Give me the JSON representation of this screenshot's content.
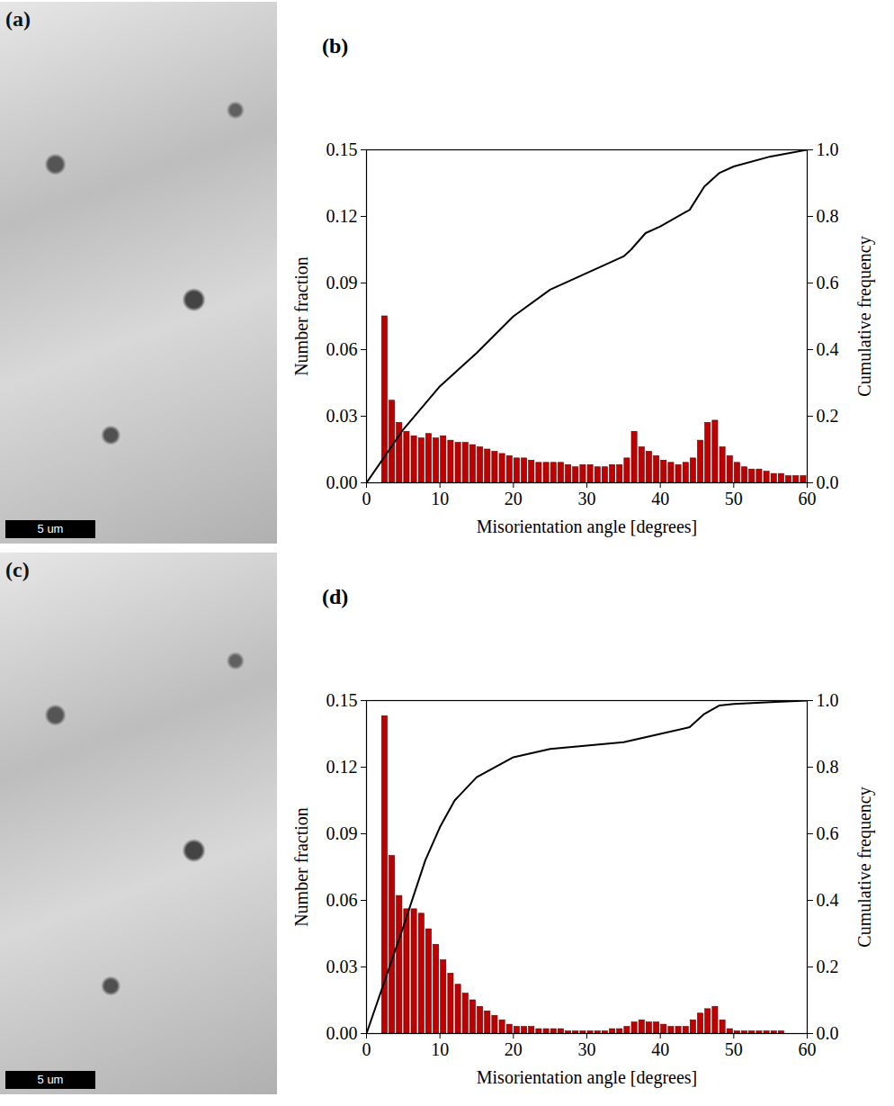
{
  "images": [
    {
      "label": "(a)",
      "scale_bar": "5 um"
    },
    {
      "label": "(c)",
      "scale_bar": "5 um"
    }
  ],
  "chart_data": [
    {
      "type": "histogram",
      "panel_label": "(b)",
      "x_label": "Misorientation angle [degrees]",
      "y_label": "Number fraction",
      "y2_label": "Cumulative frequency",
      "bins": [
        2,
        3,
        4,
        5,
        6,
        7,
        8,
        9,
        10,
        11,
        12,
        13,
        14,
        15,
        16,
        17,
        18,
        19,
        20,
        21,
        22,
        23,
        24,
        25,
        26,
        27,
        28,
        29,
        30,
        31,
        32,
        33,
        34,
        35,
        36,
        37,
        38,
        39,
        40,
        41,
        42,
        43,
        44,
        45,
        46,
        47,
        48,
        49,
        50,
        51,
        52,
        53,
        54,
        55,
        56,
        57,
        58,
        59,
        60
      ],
      "values": [
        0.075,
        0.037,
        0.027,
        0.023,
        0.021,
        0.02,
        0.022,
        0.02,
        0.021,
        0.019,
        0.018,
        0.018,
        0.017,
        0.016,
        0.015,
        0.014,
        0.013,
        0.012,
        0.011,
        0.011,
        0.01,
        0.009,
        0.009,
        0.009,
        0.009,
        0.008,
        0.007,
        0.008,
        0.008,
        0.007,
        0.007,
        0.008,
        0.008,
        0.011,
        0.023,
        0.016,
        0.014,
        0.012,
        0.01,
        0.009,
        0.008,
        0.009,
        0.011,
        0.019,
        0.027,
        0.028,
        0.016,
        0.012,
        0.009,
        0.007,
        0.006,
        0.006,
        0.005,
        0.004,
        0.004,
        0.003,
        0.003,
        0.003
      ],
      "color": "#c00000",
      "cumulative": {
        "type": "line",
        "axis": "y2",
        "color": "#000000",
        "x": [
          0,
          5,
          10,
          15,
          20,
          25,
          30,
          35,
          36,
          38,
          40,
          44,
          46,
          48,
          50,
          55,
          60
        ],
        "values": [
          0,
          0.16,
          0.29,
          0.39,
          0.5,
          0.58,
          0.63,
          0.68,
          0.7,
          0.75,
          0.77,
          0.82,
          0.89,
          0.93,
          0.95,
          0.98,
          1.0
        ]
      },
      "xlim": [
        0,
        60
      ],
      "xticks": [
        0,
        10,
        20,
        30,
        40,
        50,
        60
      ],
      "ylim": [
        0,
        0.15
      ],
      "yticks": [
        {
          "value": 0,
          "label": "0.00"
        },
        {
          "value": 0.03,
          "label": "0.03"
        },
        {
          "value": 0.06,
          "label": "0.06"
        },
        {
          "value": 0.09,
          "label": "0.09"
        },
        {
          "value": 0.12,
          "label": "0.12"
        },
        {
          "value": 0.15,
          "label": "0.15"
        }
      ],
      "y2lim": [
        0,
        1
      ],
      "y2ticks": [
        {
          "value": 0,
          "label": "0.0"
        },
        {
          "value": 0.2,
          "label": "0.2"
        },
        {
          "value": 0.4,
          "label": "0.4"
        },
        {
          "value": 0.6,
          "label": "0.6"
        },
        {
          "value": 0.8,
          "label": "0.8"
        },
        {
          "value": 1,
          "label": "1.0"
        }
      ]
    },
    {
      "type": "histogram",
      "panel_label": "(d)",
      "x_label": "Misorientation angle [degrees]",
      "y_label": "Number fraction",
      "y2_label": "Cumulative frequency",
      "bins": [
        2,
        3,
        4,
        5,
        6,
        7,
        8,
        9,
        10,
        11,
        12,
        13,
        14,
        15,
        16,
        17,
        18,
        19,
        20,
        21,
        22,
        23,
        24,
        25,
        26,
        27,
        28,
        29,
        30,
        31,
        32,
        33,
        34,
        35,
        36,
        37,
        38,
        39,
        40,
        41,
        42,
        43,
        44,
        45,
        46,
        47,
        48,
        49,
        50,
        51,
        52,
        53,
        54,
        55,
        56,
        57,
        58,
        59,
        60
      ],
      "values": [
        0.143,
        0.08,
        0.062,
        0.056,
        0.056,
        0.054,
        0.047,
        0.04,
        0.033,
        0.027,
        0.022,
        0.018,
        0.015,
        0.012,
        0.01,
        0.008,
        0.006,
        0.004,
        0.003,
        0.003,
        0.003,
        0.002,
        0.002,
        0.002,
        0.002,
        0.001,
        0.001,
        0.001,
        0.001,
        0.001,
        0.001,
        0.002,
        0.002,
        0.003,
        0.005,
        0.006,
        0.005,
        0.005,
        0.004,
        0.003,
        0.003,
        0.003,
        0.006,
        0.009,
        0.011,
        0.012,
        0.006,
        0.002,
        0.001,
        0.001,
        0.001,
        0.001,
        0.001,
        0.001,
        0.001,
        0,
        0,
        0
      ],
      "color": "#c00000",
      "cumulative": {
        "type": "line",
        "axis": "y2",
        "color": "#000000",
        "x": [
          0,
          5,
          8,
          10,
          12,
          15,
          20,
          25,
          30,
          35,
          40,
          44,
          46,
          48,
          50,
          55,
          60
        ],
        "values": [
          0,
          0.32,
          0.52,
          0.62,
          0.7,
          0.77,
          0.83,
          0.855,
          0.865,
          0.875,
          0.9,
          0.92,
          0.96,
          0.985,
          0.99,
          0.995,
          1.0
        ]
      },
      "xlim": [
        0,
        60
      ],
      "xticks": [
        0,
        10,
        20,
        30,
        40,
        50,
        60
      ],
      "ylim": [
        0,
        0.15
      ],
      "yticks": [
        {
          "value": 0,
          "label": "0.00"
        },
        {
          "value": 0.03,
          "label": "0.03"
        },
        {
          "value": 0.06,
          "label": "0.06"
        },
        {
          "value": 0.09,
          "label": "0.09"
        },
        {
          "value": 0.12,
          "label": "0.12"
        },
        {
          "value": 0.15,
          "label": "0.15"
        }
      ],
      "y2lim": [
        0,
        1
      ],
      "y2ticks": [
        {
          "value": 0,
          "label": "0.0"
        },
        {
          "value": 0.2,
          "label": "0.2"
        },
        {
          "value": 0.4,
          "label": "0.4"
        },
        {
          "value": 0.6,
          "label": "0.6"
        },
        {
          "value": 0.8,
          "label": "0.8"
        },
        {
          "value": 1,
          "label": "1.0"
        }
      ]
    }
  ]
}
